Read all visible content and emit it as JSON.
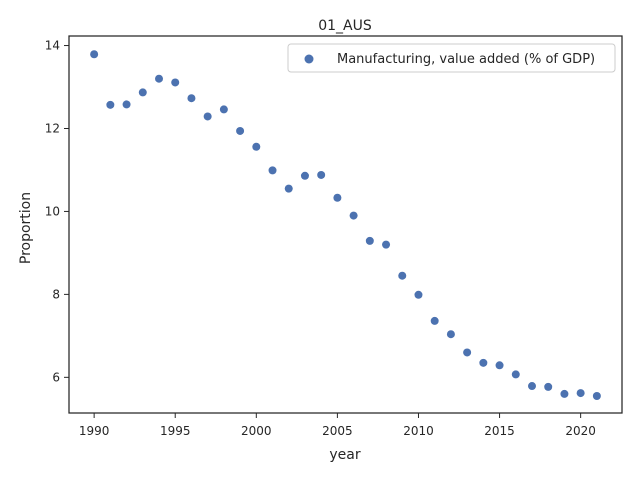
{
  "chart_data": {
    "type": "scatter",
    "title": "01_AUS",
    "xlabel": "year",
    "ylabel": "Proportion",
    "xlim": [
      1988.45,
      1990,
      2022.55
    ],
    "ylim": [
      5.14,
      14.23
    ],
    "x_ticks": [
      1990,
      1995,
      2000,
      2005,
      2010,
      2015,
      2020
    ],
    "y_ticks": [
      6,
      8,
      10,
      12,
      14
    ],
    "grid": false,
    "legend_position": "top-right",
    "series": [
      {
        "name": "Manufacturing, value added (% of GDP)",
        "color": "#4c72b0",
        "x": [
          1990,
          1991,
          1992,
          1993,
          1994,
          1995,
          1996,
          1997,
          1998,
          1999,
          2000,
          2001,
          2002,
          2003,
          2004,
          2005,
          2006,
          2007,
          2008,
          2009,
          2010,
          2011,
          2012,
          2013,
          2014,
          2015,
          2016,
          2017,
          2018,
          2019,
          2020,
          2021
        ],
        "y": [
          13.79,
          12.57,
          12.58,
          12.87,
          13.2,
          13.11,
          12.73,
          12.29,
          12.46,
          11.94,
          11.56,
          10.99,
          10.55,
          10.86,
          10.88,
          10.33,
          9.9,
          9.29,
          9.2,
          8.45,
          7.99,
          7.36,
          7.04,
          6.6,
          6.35,
          6.29,
          6.07,
          5.79,
          5.77,
          5.6,
          5.62,
          5.55
        ]
      }
    ]
  }
}
